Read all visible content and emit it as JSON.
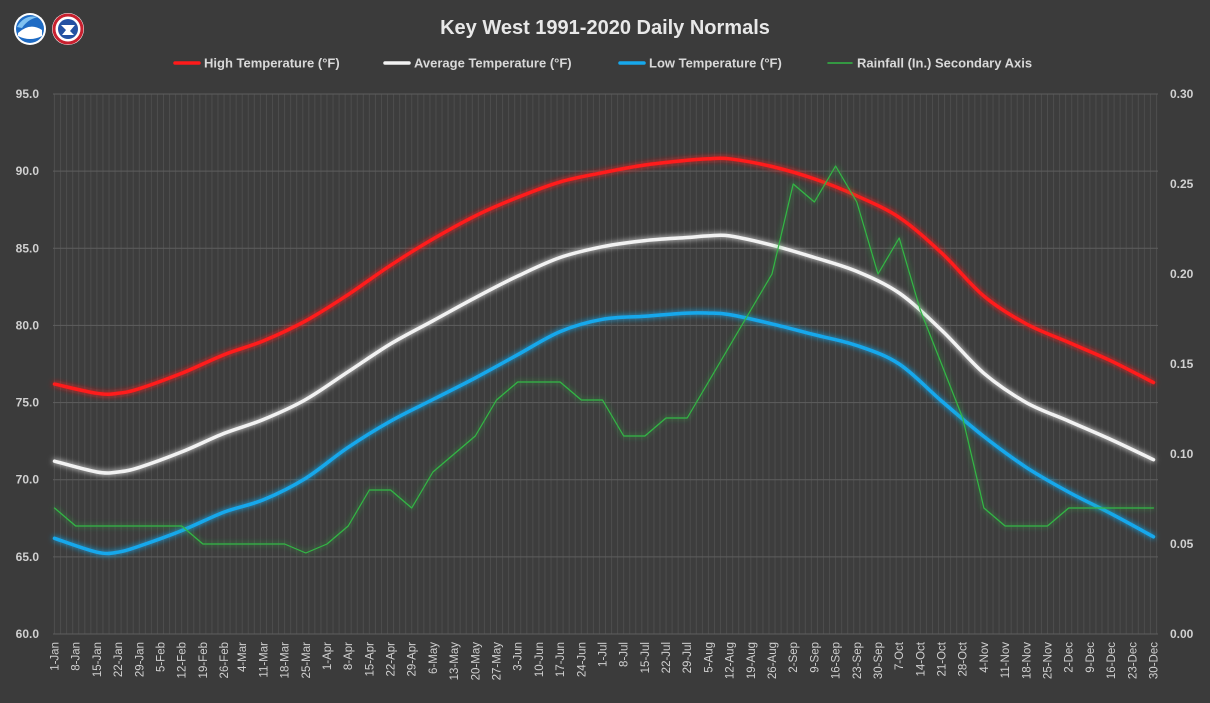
{
  "chart_data": {
    "type": "line",
    "title": "Key West 1991-2020 Daily Normals",
    "x_tick_labels": [
      "1-Jan",
      "8-Jan",
      "15-Jan",
      "22-Jan",
      "29-Jan",
      "5-Feb",
      "12-Feb",
      "19-Feb",
      "26-Feb",
      "4-Mar",
      "11-Mar",
      "18-Mar",
      "25-Mar",
      "1-Apr",
      "8-Apr",
      "15-Apr",
      "22-Apr",
      "29-Apr",
      "6-May",
      "13-May",
      "20-May",
      "27-May",
      "3-Jun",
      "10-Jun",
      "17-Jun",
      "24-Jun",
      "1-Jul",
      "8-Jul",
      "15-Jul",
      "22-Jul",
      "29-Jul",
      "5-Aug",
      "12-Aug",
      "19-Aug",
      "26-Aug",
      "2-Sep",
      "9-Sep",
      "16-Sep",
      "23-Sep",
      "30-Sep",
      "7-Oct",
      "14-Oct",
      "21-Oct",
      "28-Oct",
      "4-Nov",
      "11-Nov",
      "18-Nov",
      "25-Nov",
      "2-Dec",
      "9-Dec",
      "16-Dec",
      "23-Dec",
      "30-Dec"
    ],
    "y_left": {
      "min": 60,
      "max": 95,
      "ticks": [
        "60.0",
        "65.0",
        "70.0",
        "75.0",
        "80.0",
        "85.0",
        "90.0",
        "95.0"
      ]
    },
    "y_right": {
      "min": 0,
      "max": 0.3,
      "ticks": [
        "0.00",
        "0.05",
        "0.10",
        "0.15",
        "0.20",
        "0.25",
        "0.30"
      ]
    },
    "grid": true,
    "legend_position": "top",
    "series": [
      {
        "name": "High Temperature (°F)",
        "axis": "left",
        "color": "#ff1a1a",
        "x": [
          "1-Jan",
          "15-Jan",
          "22-Jan",
          "29-Jan",
          "12-Feb",
          "26-Feb",
          "11-Mar",
          "25-Mar",
          "8-Apr",
          "22-Apr",
          "6-May",
          "20-May",
          "3-Jun",
          "17-Jun",
          "1-Jul",
          "15-Jul",
          "29-Jul",
          "5-Aug",
          "12-Aug",
          "26-Aug",
          "9-Sep",
          "23-Sep",
          "7-Oct",
          "21-Oct",
          "4-Nov",
          "18-Nov",
          "2-Dec",
          "16-Dec",
          "30-Dec"
        ],
        "values": [
          76.2,
          75.6,
          75.6,
          75.9,
          76.9,
          78.1,
          79.0,
          80.3,
          82.0,
          83.9,
          85.6,
          87.1,
          88.3,
          89.3,
          89.9,
          90.4,
          90.7,
          90.8,
          90.8,
          90.3,
          89.5,
          88.4,
          87.0,
          84.7,
          81.9,
          80.1,
          78.9,
          77.7,
          76.3
        ]
      },
      {
        "name": "Average Temperature (°F)",
        "axis": "left",
        "color": "#f2f2f2",
        "x": [
          "1-Jan",
          "15-Jan",
          "22-Jan",
          "29-Jan",
          "12-Feb",
          "26-Feb",
          "11-Mar",
          "25-Mar",
          "8-Apr",
          "22-Apr",
          "6-May",
          "20-May",
          "3-Jun",
          "17-Jun",
          "1-Jul",
          "15-Jul",
          "29-Jul",
          "5-Aug",
          "12-Aug",
          "26-Aug",
          "9-Sep",
          "23-Sep",
          "7-Oct",
          "21-Oct",
          "4-Nov",
          "18-Nov",
          "2-Dec",
          "16-Dec",
          "30-Dec"
        ],
        "values": [
          71.2,
          70.5,
          70.5,
          70.8,
          71.8,
          73.0,
          73.9,
          75.2,
          77.0,
          78.8,
          80.3,
          81.8,
          83.2,
          84.4,
          85.1,
          85.5,
          85.7,
          85.8,
          85.8,
          85.2,
          84.4,
          83.5,
          82.1,
          79.7,
          76.9,
          75.0,
          73.8,
          72.6,
          71.3
        ]
      },
      {
        "name": "Low Temperature (°F)",
        "axis": "left",
        "color": "#16a8ec",
        "x": [
          "1-Jan",
          "15-Jan",
          "22-Jan",
          "29-Jan",
          "12-Feb",
          "26-Feb",
          "11-Mar",
          "25-Mar",
          "8-Apr",
          "22-Apr",
          "6-May",
          "20-May",
          "3-Jun",
          "17-Jun",
          "1-Jul",
          "15-Jul",
          "29-Jul",
          "5-Aug",
          "12-Aug",
          "26-Aug",
          "9-Sep",
          "23-Sep",
          "7-Oct",
          "21-Oct",
          "4-Nov",
          "18-Nov",
          "2-Dec",
          "16-Dec",
          "30-Dec"
        ],
        "values": [
          66.2,
          65.3,
          65.3,
          65.7,
          66.7,
          67.9,
          68.7,
          70.1,
          72.1,
          73.8,
          75.2,
          76.6,
          78.1,
          79.6,
          80.4,
          80.6,
          80.8,
          80.8,
          80.7,
          80.1,
          79.4,
          78.7,
          77.5,
          75.1,
          72.8,
          70.8,
          69.2,
          67.8,
          66.3
        ]
      },
      {
        "name": "Rainfall (In.) Secondary Axis",
        "axis": "right",
        "color": "#33b844",
        "x": [
          "1-Jan",
          "8-Jan",
          "15-Jan",
          "22-Jan",
          "29-Jan",
          "5-Feb",
          "12-Feb",
          "19-Feb",
          "26-Feb",
          "4-Mar",
          "11-Mar",
          "18-Mar",
          "25-Mar",
          "1-Apr",
          "8-Apr",
          "15-Apr",
          "22-Apr",
          "29-Apr",
          "6-May",
          "13-May",
          "20-May",
          "27-May",
          "3-Jun",
          "10-Jun",
          "17-Jun",
          "24-Jun",
          "1-Jul",
          "8-Jul",
          "15-Jul",
          "22-Jul",
          "29-Jul",
          "5-Aug",
          "12-Aug",
          "19-Aug",
          "26-Aug",
          "2-Sep",
          "9-Sep",
          "16-Sep",
          "23-Sep",
          "30-Sep",
          "7-Oct",
          "14-Oct",
          "21-Oct",
          "28-Oct",
          "4-Nov",
          "11-Nov",
          "18-Nov",
          "25-Nov",
          "2-Dec",
          "9-Dec",
          "16-Dec",
          "23-Dec",
          "30-Dec"
        ],
        "values": [
          0.07,
          0.06,
          0.06,
          0.06,
          0.06,
          0.06,
          0.06,
          0.05,
          0.05,
          0.05,
          0.05,
          0.05,
          0.045,
          0.05,
          0.06,
          0.08,
          0.08,
          0.07,
          0.09,
          0.1,
          0.11,
          0.13,
          0.14,
          0.14,
          0.14,
          0.13,
          0.13,
          0.11,
          0.11,
          0.12,
          0.12,
          0.14,
          0.16,
          0.18,
          0.2,
          0.25,
          0.24,
          0.26,
          0.24,
          0.2,
          0.22,
          0.18,
          0.15,
          0.12,
          0.07,
          0.06,
          0.06,
          0.06,
          0.07,
          0.07,
          0.07,
          0.07,
          0.07
        ]
      }
    ]
  }
}
